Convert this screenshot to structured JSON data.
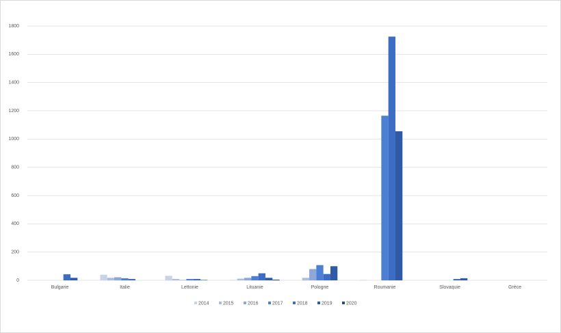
{
  "chart_data": {
    "type": "bar",
    "categories": [
      "Bulgarie",
      "Italie",
      "Lettonie",
      "Lituanie",
      "Pologne",
      "Roumanie",
      "Slovaquie",
      "Grèce"
    ],
    "series": [
      {
        "name": "2014",
        "color": "#c9d3e8",
        "values": [
          0,
          40,
          32,
          3,
          0,
          3,
          0,
          0
        ]
      },
      {
        "name": "2015",
        "color": "#adbde0",
        "values": [
          0,
          18,
          10,
          12,
          18,
          0,
          0,
          0
        ]
      },
      {
        "name": "2016",
        "color": "#8ea7d8",
        "values": [
          0,
          22,
          3,
          18,
          80,
          0,
          0,
          0
        ]
      },
      {
        "name": "2017",
        "color": "#4d7fd4",
        "values": [
          0,
          15,
          10,
          30,
          108,
          1165,
          0,
          0
        ]
      },
      {
        "name": "2018",
        "color": "#3c6cc4",
        "values": [
          43,
          10,
          10,
          50,
          45,
          1725,
          10,
          0
        ]
      },
      {
        "name": "2019",
        "color": "#2f5aa6",
        "values": [
          18,
          0,
          3,
          18,
          100,
          1055,
          15,
          0
        ]
      },
      {
        "name": "2020",
        "color": "#264a8a",
        "values": [
          0,
          0,
          0,
          5,
          0,
          0,
          0,
          0
        ]
      }
    ],
    "ylim": [
      0,
      1800
    ],
    "yticks": [
      0,
      200,
      400,
      600,
      800,
      1000,
      1200,
      1400,
      1600,
      1800
    ],
    "grid": true
  }
}
